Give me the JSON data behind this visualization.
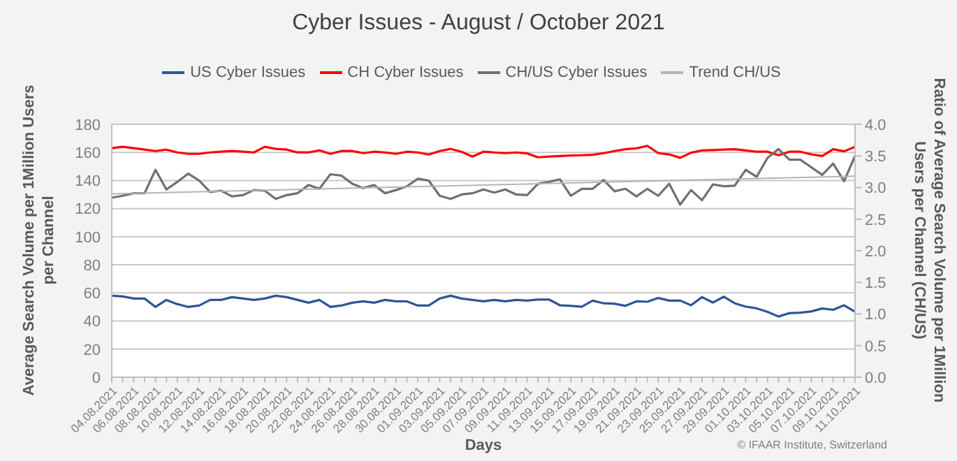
{
  "chart_data": {
    "type": "line",
    "title": "Cyber Issues - August / October 2021",
    "xlabel": "Days",
    "ylabel": "Average Search Volume per 1Million Users per Channel",
    "y2label": "Ratio of Average Search Volume per 1Million Users per Channel (CH/US)",
    "annotations": [
      "© IFAAR Institute, Switzerland"
    ],
    "categories": [
      "04.08.2021",
      null,
      "06.08.2021",
      null,
      "08.08.2021",
      null,
      "10.08.2021",
      null,
      "12.08.2021",
      null,
      "14.08.2021",
      null,
      "16.08.2021",
      null,
      "18.08.2021",
      null,
      "20.08.2021",
      null,
      "22.08.2021",
      null,
      "24.08.2021",
      null,
      "26.08.2021",
      null,
      "28.08.2021",
      null,
      "30.08.2021",
      null,
      "01.09.2021",
      null,
      "03.09.2021",
      null,
      "05.09.2021",
      null,
      "07.09.2021",
      null,
      "09.09.2021",
      null,
      "11.09.2021",
      null,
      "13.09.2021",
      null,
      "15.09.2021",
      null,
      "17.09.2021",
      null,
      "19.09.2021",
      null,
      "21.09.2021",
      null,
      "23.09.2021",
      null,
      "25.09.2021",
      null,
      "27.09.2021",
      null,
      "29.09.2021",
      null,
      "01.10.2021",
      null,
      "03.10.2021",
      null,
      "05.10.2021",
      null,
      "07.10.2021",
      null,
      "09.10.2021",
      null,
      "11.10.2021"
    ],
    "series": [
      {
        "name": "US Cyber Issues",
        "color": "#2f5597",
        "values": [
          58,
          57.5,
          56,
          56,
          50,
          55,
          52,
          50,
          51,
          55,
          55,
          57,
          56,
          55,
          56,
          58,
          57,
          55,
          53,
          55,
          50,
          51,
          53,
          54,
          53,
          55,
          54,
          54,
          51,
          51,
          56,
          58,
          56,
          55,
          54,
          55,
          54,
          55,
          54.5,
          55.3,
          55.3,
          51.2,
          50.8,
          50.2,
          54.5,
          52.6,
          52.3,
          50.8,
          54,
          53.7,
          56.4,
          54.5,
          54.5,
          51.2,
          57,
          53.1,
          57.3,
          52.6,
          50.2,
          49,
          46.5,
          43.2,
          45.6,
          45.9,
          46.8,
          48.9,
          48,
          51.2,
          46.5
        ]
      },
      {
        "name": "CH Cyber Issues",
        "color": "#ff0000",
        "values": [
          163,
          164,
          163,
          162,
          161,
          162,
          160,
          159,
          159,
          160,
          160.5,
          161,
          160.5,
          160,
          164,
          162.5,
          162,
          160,
          160,
          161.5,
          159,
          161,
          161,
          159.5,
          160.5,
          160,
          159,
          160.5,
          160,
          158.5,
          161,
          162.5,
          160.5,
          157,
          160.5,
          160,
          159.5,
          160,
          159.3,
          156.5,
          157.1,
          157.4,
          157.8,
          158,
          158.3,
          159.5,
          161,
          162.3,
          162.9,
          164.7,
          159.5,
          158.6,
          156.2,
          159.8,
          161.4,
          161.7,
          162,
          162.3,
          161.4,
          160.5,
          160.5,
          158,
          160.5,
          160.5,
          158.6,
          157.4,
          162.3,
          160.8,
          164
        ]
      },
      {
        "name": "CH/US Cyber Issues",
        "color": "#707070",
        "axis": "y2",
        "values": [
          2.84,
          2.87,
          2.91,
          2.91,
          3.28,
          2.97,
          3.09,
          3.22,
          3.11,
          2.93,
          2.95,
          2.86,
          2.88,
          2.96,
          2.95,
          2.82,
          2.88,
          2.91,
          3.04,
          2.98,
          3.21,
          3.19,
          3.06,
          2.99,
          3.04,
          2.91,
          2.96,
          3.02,
          3.14,
          3.11,
          2.87,
          2.82,
          2.89,
          2.91,
          2.97,
          2.92,
          2.97,
          2.89,
          2.88,
          3.06,
          3.09,
          3.13,
          2.87,
          2.98,
          2.98,
          3.12,
          2.94,
          2.98,
          2.86,
          2.98,
          2.87,
          3.06,
          2.73,
          2.96,
          2.8,
          3.05,
          3.02,
          3.03,
          3.28,
          3.17,
          3.47,
          3.61,
          3.44,
          3.44,
          3.32,
          3.2,
          3.38,
          3.1,
          3.5
        ]
      },
      {
        "name": "Trend CH/US",
        "color": "#b4b4b4",
        "axis": "y2",
        "x": [
          "04.08.2021",
          "11.10.2021"
        ],
        "values": [
          2.9,
          3.18
        ]
      }
    ],
    "ylim": [
      0,
      180
    ],
    "yticks": [
      0,
      20,
      40,
      60,
      80,
      100,
      120,
      140,
      160,
      180
    ],
    "y2lim": [
      0,
      4
    ],
    "y2ticks": [
      {
        "value": 0,
        "label": "0.0"
      },
      {
        "value": 0.5,
        "label": "0.5"
      },
      {
        "value": 1,
        "label": "1.0"
      },
      {
        "value": 1.5,
        "label": "1.5"
      },
      {
        "value": 2,
        "label": "2.0"
      },
      {
        "value": 2.5,
        "label": "2.5"
      },
      {
        "value": 3,
        "label": "3.0"
      },
      {
        "value": 3.5,
        "label": "3.5"
      },
      {
        "value": 4,
        "label": "4.0"
      }
    ],
    "grid": "y",
    "legend": "top",
    "marker": "none",
    "line_style": "solid"
  }
}
